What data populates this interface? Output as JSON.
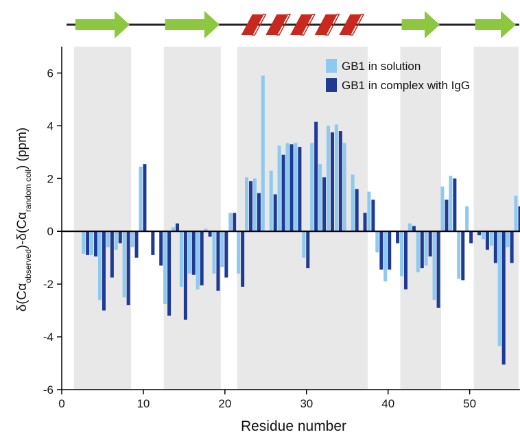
{
  "chart_data": {
    "type": "bar",
    "xlabel": "Residue number",
    "ylabel_parts": [
      {
        "text": "δ(Cα",
        "sub": false
      },
      {
        "text": "observed",
        "sub": true
      },
      {
        "text": ")-δ(Cα",
        "sub": false
      },
      {
        "text": "random coil",
        "sub": true
      },
      {
        "text": ") (ppm)",
        "sub": false
      }
    ],
    "x": [
      1,
      2,
      3,
      4,
      5,
      6,
      7,
      8,
      9,
      10,
      11,
      12,
      13,
      14,
      15,
      16,
      17,
      18,
      19,
      20,
      21,
      22,
      23,
      24,
      25,
      26,
      27,
      28,
      29,
      30,
      31,
      32,
      33,
      34,
      35,
      36,
      37,
      38,
      39,
      40,
      41,
      42,
      43,
      44,
      45,
      46,
      47,
      48,
      49,
      50,
      51,
      52,
      53,
      54,
      55,
      56
    ],
    "series": [
      {
        "name": "GB1 in solution",
        "color": "#8ec9ef",
        "values": [
          null,
          null,
          -0.85,
          -0.9,
          -2.6,
          -0.6,
          -0.7,
          -2.5,
          -0.6,
          2.45,
          null,
          null,
          -2.75,
          0.15,
          -2.1,
          -1.6,
          -2.2,
          0.1,
          -1.6,
          -1.35,
          0.7,
          -1.6,
          2.05,
          2.0,
          5.9,
          2.3,
          3.25,
          3.35,
          3.35,
          -1.0,
          3.35,
          2.55,
          4.0,
          4.05,
          3.35,
          2.15,
          null,
          1.5,
          -0.8,
          -1.9,
          null,
          -1.7,
          0.3,
          -1.55,
          -1.3,
          -2.6,
          1.7,
          2.1,
          -1.8,
          0.95,
          null,
          -0.3,
          -0.55,
          -4.35,
          -0.6,
          1.35
        ]
      },
      {
        "name": "GB1 in complex with IgG",
        "color": "#1f3a93",
        "values": [
          null,
          null,
          -0.9,
          -0.95,
          -3.0,
          -1.75,
          -0.45,
          -2.8,
          -1.0,
          2.55,
          -0.9,
          -1.3,
          -3.2,
          0.3,
          -3.35,
          -1.65,
          -2.05,
          -0.2,
          -2.25,
          -1.75,
          0.7,
          -2.1,
          1.9,
          1.45,
          null,
          1.4,
          2.9,
          3.3,
          3.2,
          -1.4,
          4.15,
          2.05,
          3.75,
          3.8,
          null,
          1.6,
          0.7,
          1.2,
          -1.45,
          -1.45,
          -0.45,
          -2.2,
          0.2,
          -1.4,
          -0.95,
          -2.9,
          1.2,
          2.0,
          -1.85,
          -0.45,
          -0.15,
          -0.7,
          -1.2,
          -5.05,
          -1.2,
          0.95
        ]
      }
    ],
    "xlim": [
      0,
      56
    ],
    "ylim": [
      -6,
      7
    ],
    "xticks": [
      0,
      10,
      20,
      30,
      40,
      50
    ],
    "yticks": [
      -6,
      -4,
      -2,
      0,
      2,
      4,
      6
    ],
    "strands": [
      [
        1.5,
        8.5
      ],
      [
        12.5,
        19.5
      ],
      [
        41.5,
        46.5
      ],
      [
        50.5,
        56
      ]
    ],
    "helix": [
      21.5,
      37.5
    ],
    "helix_icon": [
      22,
      37
    ],
    "region_color": "#e8e8e8",
    "strand_color": "#8dc63f",
    "helix_color": "#c8281e",
    "legend": "top-right"
  }
}
